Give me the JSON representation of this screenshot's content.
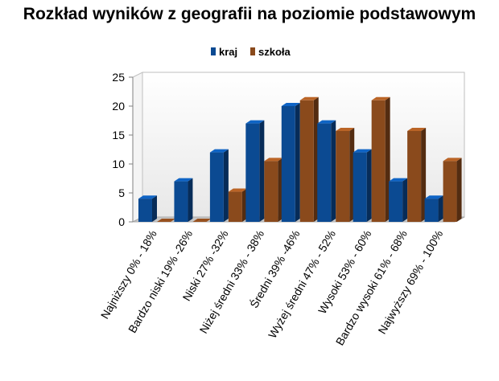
{
  "chart_data": {
    "type": "bar",
    "title": "Rozkład wyników z geografii na poziomie podstawowym",
    "categories": [
      "Najniższy 0% - 18%",
      "Bardzo niski 19% -26%",
      "Niski 27% -32%",
      "Niżej średni 33% - 38%",
      "Średni 39% -46%",
      "Wyżej średni 47% - 52%",
      "Wysoki 53% - 60%",
      "Bardzo wysoki 61% - 68%",
      "Najwyższy 69% - 100%"
    ],
    "series": [
      {
        "name": "kraj",
        "values": [
          4,
          7,
          12,
          17,
          20,
          17,
          12,
          7,
          4
        ],
        "color": "#0b4a92"
      },
      {
        "name": "szkoła",
        "values": [
          0,
          0,
          5.2,
          10.5,
          21,
          15.7,
          21,
          15.7,
          10.5
        ],
        "color": "#8a4a1c"
      }
    ],
    "ylim": [
      0,
      25
    ],
    "yticks": [
      0,
      5,
      10,
      15,
      20,
      25
    ],
    "legend": "top",
    "grid": false,
    "xlabel": "",
    "ylabel": ""
  }
}
